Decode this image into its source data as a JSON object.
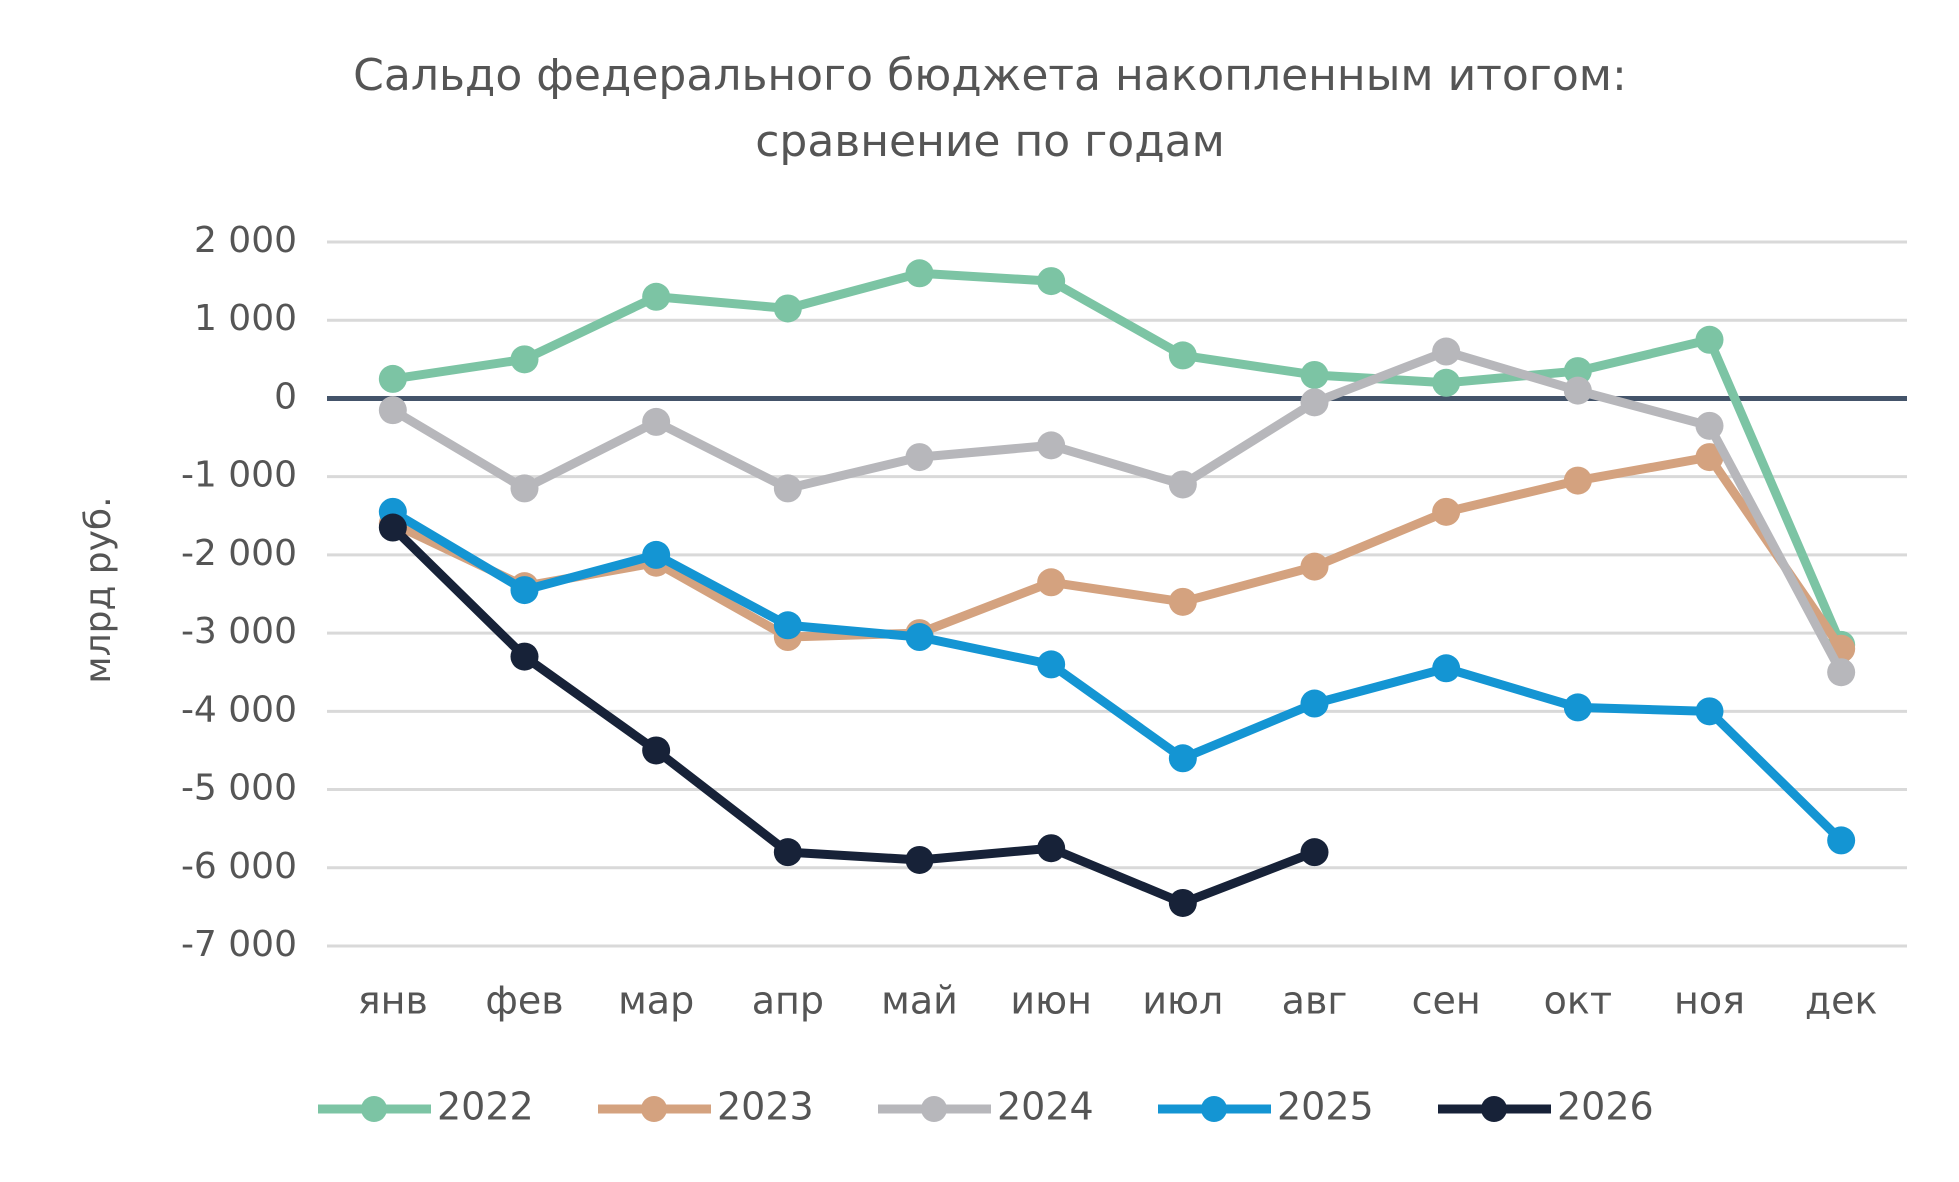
{
  "chart_data": {
    "type": "line",
    "title": [
      "Сальдо федерального бюджета накопленным итогом:",
      "сравнение по годам"
    ],
    "y_label": "млрд руб.",
    "categories": [
      "янв",
      "фев",
      "мар",
      "апр",
      "май",
      "июн",
      "июл",
      "авг",
      "сен",
      "окт",
      "ноя",
      "дек"
    ],
    "series": [
      {
        "name": "2022",
        "color": "#7cc4a4",
        "values": [
          250,
          500,
          1300,
          1150,
          1600,
          1500,
          550,
          300,
          200,
          350,
          750,
          -3150
        ]
      },
      {
        "name": "2023",
        "color": "#d4a27f",
        "values": [
          -1600,
          -2400,
          -2100,
          -3050,
          -3000,
          -2350,
          -2600,
          -2150,
          -1450,
          -1050,
          -750,
          -3200
        ]
      },
      {
        "name": "2024",
        "color": "#b7b7bb",
        "values": [
          -150,
          -1150,
          -300,
          -1150,
          -750,
          -600,
          -1100,
          -50,
          600,
          100,
          -350,
          -3500
        ]
      },
      {
        "name": "2025",
        "color": "#1495d3",
        "values": [
          -1450,
          -2450,
          -2000,
          -2900,
          -3050,
          -3400,
          -4600,
          -3900,
          -3450,
          -3950,
          -4000,
          -5650
        ]
      },
      {
        "name": "2026",
        "color": "#172238",
        "values": [
          -1650,
          -3300,
          -4500,
          -5800,
          -5900,
          -5750,
          -6450,
          -5800,
          null,
          null,
          null,
          null
        ]
      }
    ],
    "ylim": [
      -7000,
      2000
    ],
    "yticks": [
      {
        "value": 2000,
        "label": "2 000"
      },
      {
        "value": 1000,
        "label": "1 000"
      },
      0,
      {
        "value": -1000,
        "label": "-1 000"
      },
      {
        "value": -2000,
        "label": "-2 000"
      },
      {
        "value": -3000,
        "label": "-3 000"
      },
      {
        "value": -4000,
        "label": "-4 000"
      },
      {
        "value": -5000,
        "label": "-5 000"
      },
      {
        "value": -6000,
        "label": "-6 000"
      },
      {
        "value": -7000,
        "label": "-7 000"
      }
    ],
    "grid": true,
    "legend": "bottom"
  }
}
